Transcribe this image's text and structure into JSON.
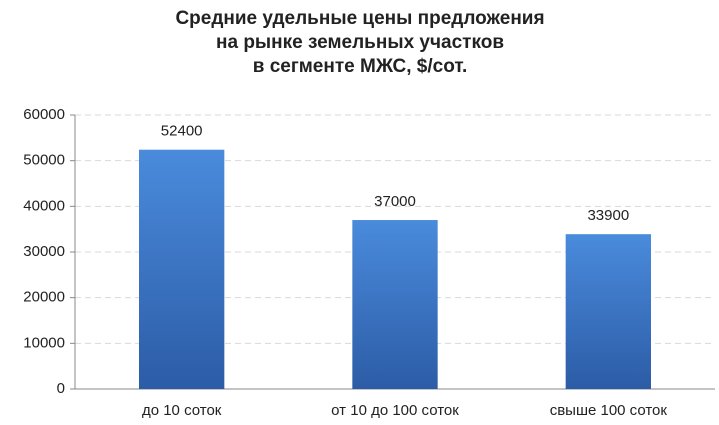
{
  "chart_data": {
    "type": "bar",
    "title": [
      "Средние удельные цены предложения",
      "на рынке земельных участков",
      "в сегменте МЖС, $/сот."
    ],
    "categories": [
      "до 10 соток",
      "от 10 до 100 соток",
      "свыше 100 соток"
    ],
    "values": [
      52400,
      37000,
      33900
    ],
    "color": "#3a74c4",
    "ylim": [
      0,
      60000
    ],
    "yticks": [
      0,
      10000,
      20000,
      30000,
      40000,
      50000,
      60000
    ],
    "grid": true
  }
}
